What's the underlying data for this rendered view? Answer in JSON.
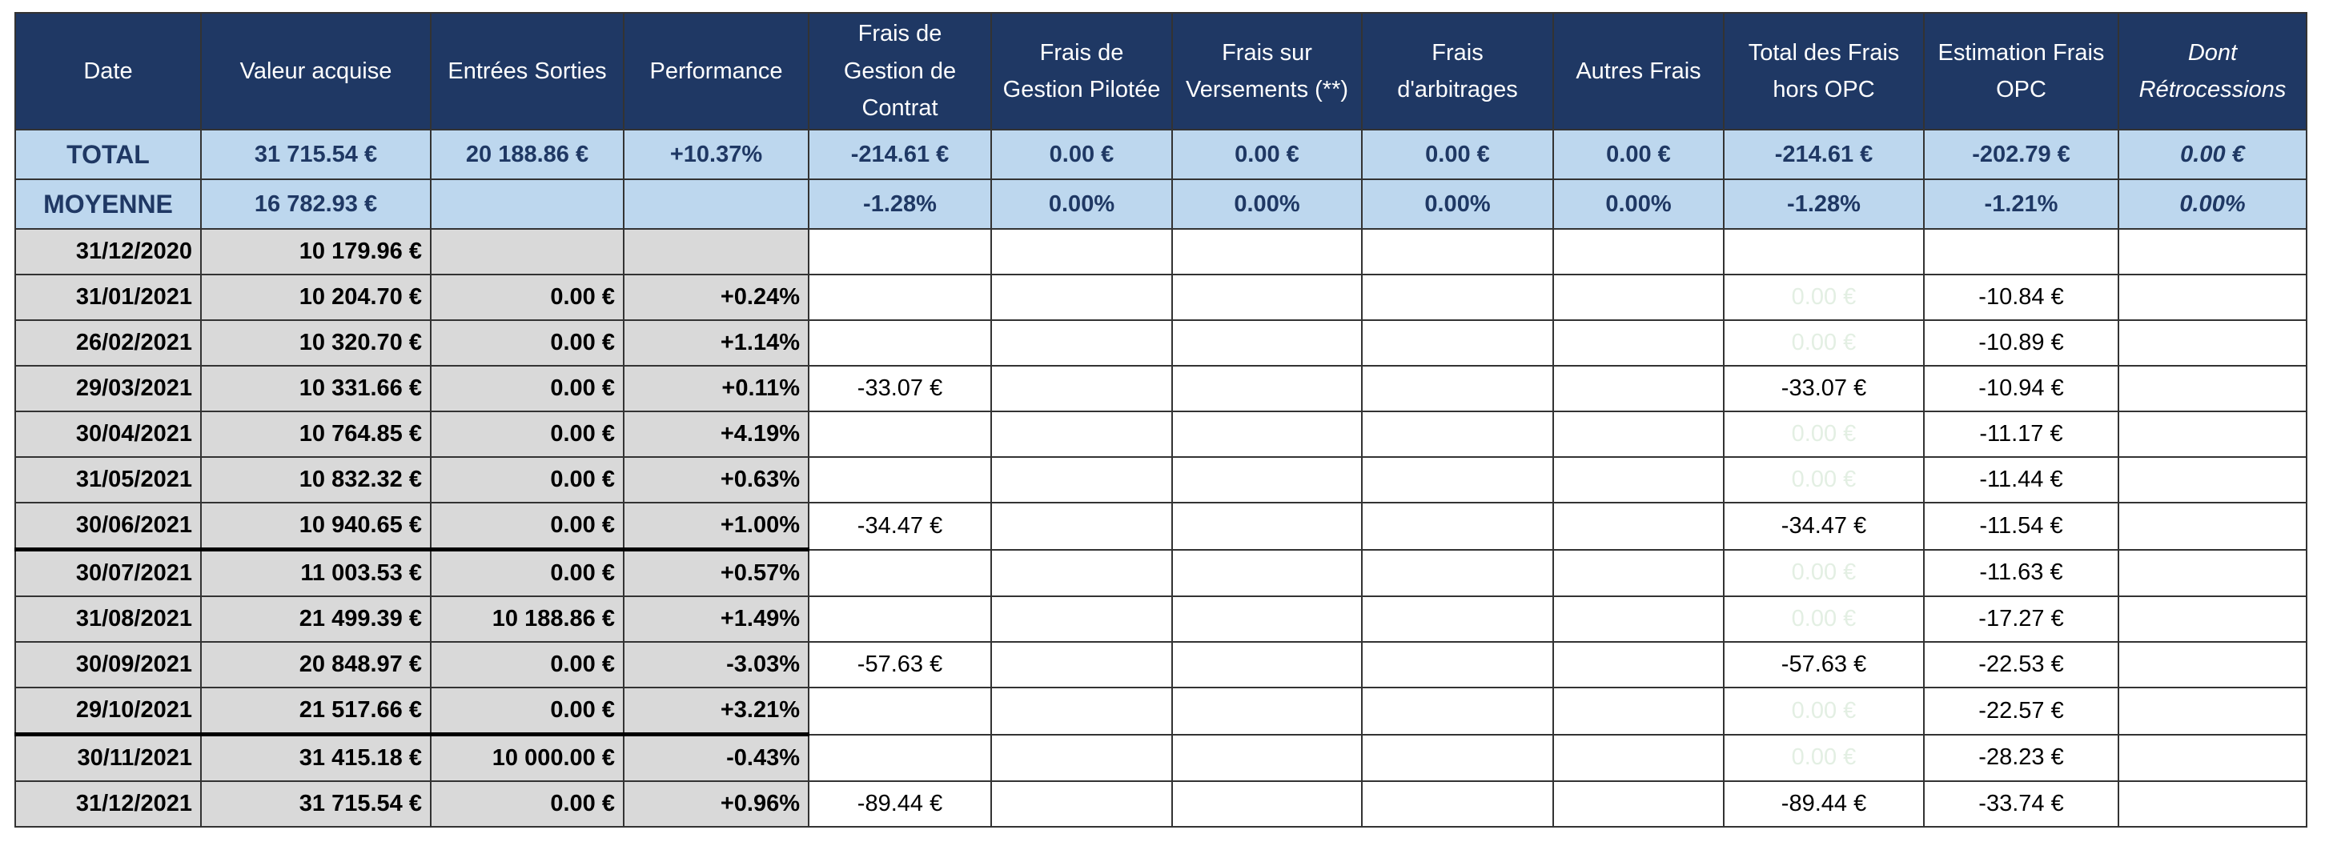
{
  "table": {
    "header": [
      "Date",
      "Valeur acquise",
      "Entrées Sorties",
      "Performance",
      "Frais de Gestion de Contrat",
      "Frais de Gestion Pilotée",
      "Frais sur Versements (**)",
      "Frais d'arbitrages",
      "Autres Frais",
      "Total des Frais hors OPC",
      "Estimation Frais OPC",
      "Dont Rétrocessions"
    ],
    "total": [
      "TOTAL",
      "31 715.54 €",
      "20 188.86 €",
      "+10.37%",
      "-214.61 €",
      "0.00 €",
      "0.00 €",
      "0.00 €",
      "0.00 €",
      "-214.61 €",
      "-202.79 €",
      "0.00 €"
    ],
    "average": [
      "MOYENNE",
      "16 782.93 €",
      null,
      null,
      "-1.28%",
      "0.00%",
      "0.00%",
      "0.00%",
      "0.00%",
      "-1.28%",
      "-1.21%",
      "0.00%"
    ],
    "rows": [
      [
        "31/12/2020",
        "10 179.96 €",
        null,
        null,
        null,
        null,
        null,
        null,
        null,
        null,
        null,
        null
      ],
      [
        "31/01/2021",
        "10 204.70 €",
        "0.00 €",
        "+0.24%",
        null,
        null,
        null,
        null,
        null,
        "0.00 €",
        "-10.84 €",
        null
      ],
      [
        "26/02/2021",
        "10 320.70 €",
        "0.00 €",
        "+1.14%",
        null,
        null,
        null,
        null,
        null,
        "0.00 €",
        "-10.89 €",
        null
      ],
      [
        "29/03/2021",
        "10 331.66 €",
        "0.00 €",
        "+0.11%",
        "-33.07 €",
        null,
        null,
        null,
        null,
        "-33.07 €",
        "-10.94 €",
        null
      ],
      [
        "30/04/2021",
        "10 764.85 €",
        "0.00 €",
        "+4.19%",
        null,
        null,
        null,
        null,
        null,
        "0.00 €",
        "-11.17 €",
        null
      ],
      [
        "31/05/2021",
        "10 832.32 €",
        "0.00 €",
        "+0.63%",
        null,
        null,
        null,
        null,
        null,
        "0.00 €",
        "-11.44 €",
        null
      ],
      [
        "30/06/2021",
        "10 940.65 €",
        "0.00 €",
        "+1.00%",
        "-34.47 €",
        null,
        null,
        null,
        null,
        "-34.47 €",
        "-11.54 €",
        null
      ],
      [
        "30/07/2021",
        "11 003.53 €",
        "0.00 €",
        "+0.57%",
        null,
        null,
        null,
        null,
        null,
        "0.00 €",
        "-11.63 €",
        null
      ],
      [
        "31/08/2021",
        "21 499.39 €",
        "10 188.86 €",
        "+1.49%",
        null,
        null,
        null,
        null,
        null,
        "0.00 €",
        "-17.27 €",
        null
      ],
      [
        "30/09/2021",
        "20 848.97 €",
        "0.00 €",
        "-3.03%",
        "-57.63 €",
        null,
        null,
        null,
        null,
        "-57.63 €",
        "-22.53 €",
        null
      ],
      [
        "29/10/2021",
        "21 517.66 €",
        "0.00 €",
        "+3.21%",
        null,
        null,
        null,
        null,
        null,
        "0.00 €",
        "-22.57 €",
        null
      ],
      [
        "30/11/2021",
        "31 415.18 €",
        "10 000.00 €",
        "-0.43%",
        null,
        null,
        null,
        null,
        null,
        "0.00 €",
        "-28.23 €",
        null
      ],
      [
        "31/12/2021",
        "31 715.54 €",
        "0.00 €",
        "+0.96%",
        "-89.44 €",
        null,
        null,
        null,
        null,
        "-89.44 €",
        "-33.74 €",
        null
      ]
    ]
  }
}
